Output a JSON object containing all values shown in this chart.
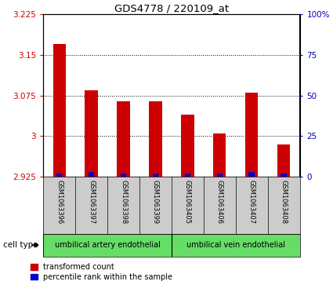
{
  "title": "GDS4778 / 220109_at",
  "samples": [
    "GSM1063396",
    "GSM1063397",
    "GSM1063398",
    "GSM1063399",
    "GSM1063405",
    "GSM1063406",
    "GSM1063407",
    "GSM1063408"
  ],
  "red_values": [
    3.17,
    3.085,
    3.065,
    3.065,
    3.04,
    3.005,
    3.08,
    2.985
  ],
  "blue_values": [
    2,
    3,
    2,
    2,
    2,
    2,
    3,
    2
  ],
  "ymin": 2.925,
  "ymax": 3.225,
  "y_ticks": [
    2.925,
    3.0,
    3.075,
    3.15,
    3.225
  ],
  "y2min": 0,
  "y2max": 100,
  "y2_ticks": [
    0,
    25,
    50,
    75,
    100
  ],
  "cell_types": [
    {
      "label": "umbilical artery endothelial",
      "start": 0,
      "end": 4,
      "color": "#66DD66"
    },
    {
      "label": "umbilical vein endothelial",
      "start": 4,
      "end": 8,
      "color": "#66DD66"
    }
  ],
  "bar_color_red": "#CC0000",
  "bar_color_blue": "#0000CC",
  "bar_width": 0.4,
  "plot_bg_color": "#FFFFFF",
  "tick_color_left": "#CC0000",
  "tick_color_right": "#0000BB",
  "grid_color": "#000000",
  "sample_bg_color": "#CCCCCC",
  "legend_red": "transformed count",
  "legend_blue": "percentile rank within the sample",
  "cell_type_label": "cell type"
}
